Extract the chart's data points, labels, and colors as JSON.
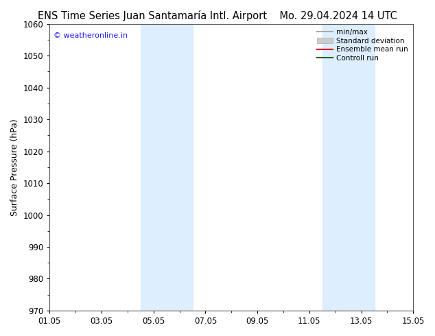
{
  "title_left": "ENS Time Series Juan Santamaría Intl. Airport",
  "title_right": "Mo. 29.04.2024 14 UTC",
  "ylabel": "Surface Pressure (hPa)",
  "ylim": [
    970,
    1060
  ],
  "yticks": [
    970,
    980,
    990,
    1000,
    1010,
    1020,
    1030,
    1040,
    1050,
    1060
  ],
  "xtick_labels": [
    "01.05",
    "03.05",
    "05.05",
    "07.05",
    "09.05",
    "11.05",
    "13.05",
    "15.05"
  ],
  "xtick_positions": [
    0,
    2,
    4,
    6,
    8,
    10,
    12,
    14
  ],
  "xlim": [
    0,
    14
  ],
  "blue_bands": [
    {
      "start": 3.5,
      "end": 4.5
    },
    {
      "start": 4.5,
      "end": 5.5
    },
    {
      "start": 10.5,
      "end": 11.5
    },
    {
      "start": 11.5,
      "end": 12.5
    }
  ],
  "watermark": "© weatheronline.in",
  "watermark_color": "#1a1aff",
  "background_color": "#ffffff",
  "grid_color": "#cccccc",
  "band_color": "#ddeeff",
  "legend_items": [
    {
      "label": "min/max",
      "color": "#aaaaaa",
      "lw": 1.5,
      "type": "line"
    },
    {
      "label": "Standard deviation",
      "color": "#cccccc",
      "lw": 8,
      "type": "patch"
    },
    {
      "label": "Ensemble mean run",
      "color": "#dd0000",
      "lw": 1.5,
      "type": "line"
    },
    {
      "label": "Controll run",
      "color": "#006600",
      "lw": 1.5,
      "type": "line"
    }
  ],
  "title_fontsize": 10.5,
  "tick_fontsize": 8.5,
  "ylabel_fontsize": 9,
  "watermark_fontsize": 8,
  "legend_fontsize": 7.5,
  "figsize": [
    6.34,
    4.9
  ],
  "dpi": 100
}
